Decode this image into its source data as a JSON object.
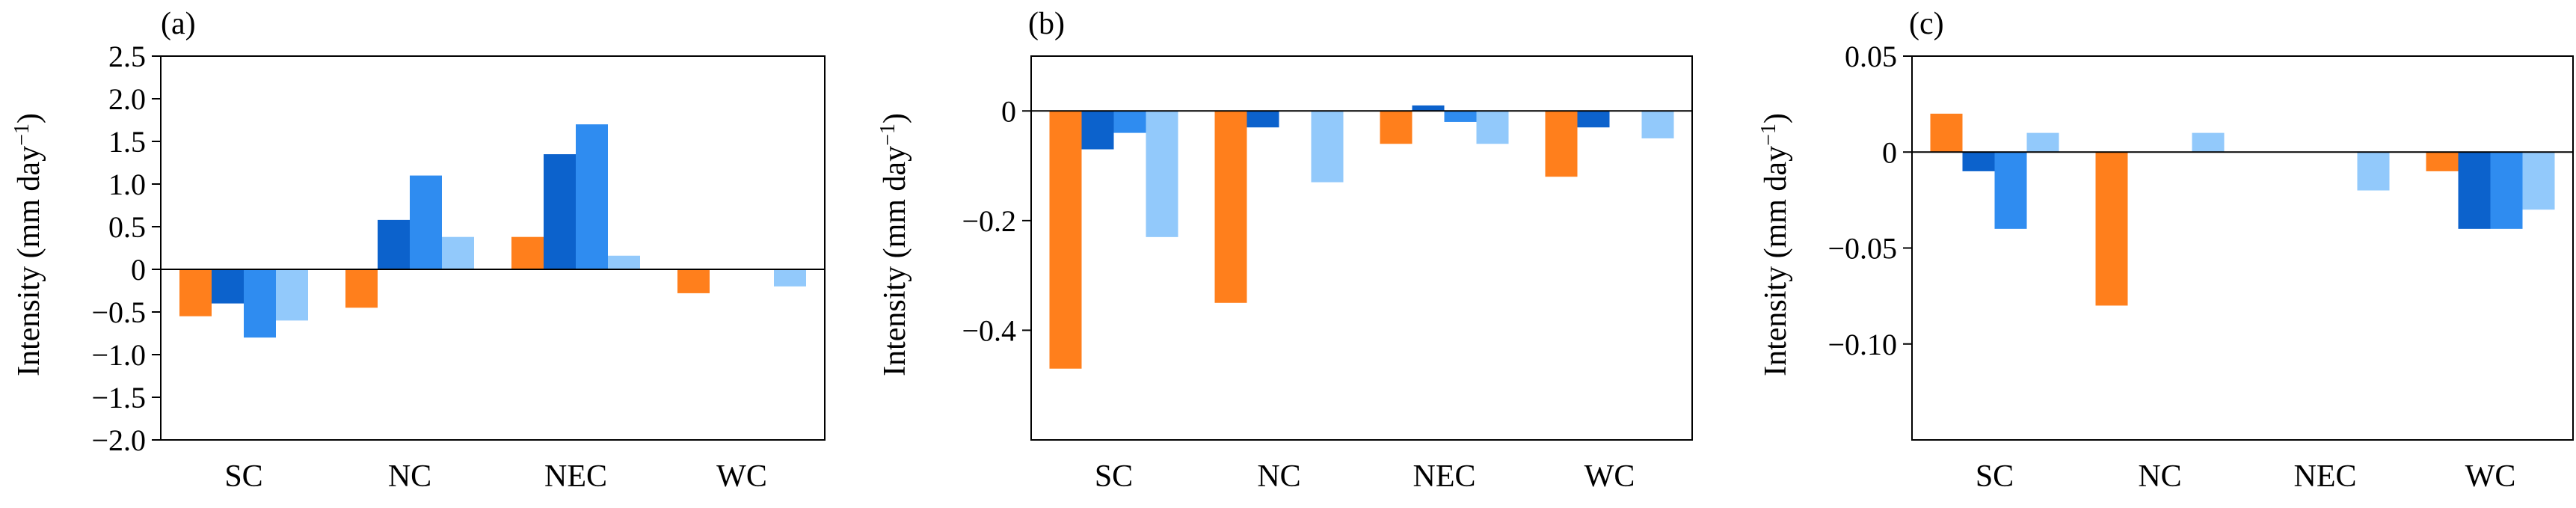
{
  "figure": {
    "colors": {
      "series1": "#ff7f1c",
      "series2": "#0c62cc",
      "series3": "#2f8cf0",
      "series4": "#92c9fb"
    }
  },
  "chart_data": [
    {
      "type": "bar",
      "panel": "(a)",
      "ylabel": "Intensity (mm day",
      "ylabel_sup": "−1",
      "ylabel_close": ")",
      "categories": [
        "SC",
        "NC",
        "NEC",
        "WC"
      ],
      "ylim": [
        -2.0,
        2.5
      ],
      "yticks": [
        -2.0,
        -1.5,
        -1.0,
        -0.5,
        0,
        0.5,
        1.0,
        1.5,
        2.0,
        2.5
      ],
      "ytick_labels": [
        "−2.0",
        "−1.5",
        "−1.0",
        "−0.5",
        "0",
        "0.5",
        "1.0",
        "1.5",
        "2.0",
        "2.5"
      ],
      "grid": false,
      "zero_line": true,
      "series": [
        {
          "values": [
            -0.55,
            -0.45,
            0.38,
            -0.28
          ]
        },
        {
          "values": [
            -0.4,
            0.58,
            1.35,
            0
          ]
        },
        {
          "values": [
            -0.8,
            1.1,
            1.7,
            0
          ]
        },
        {
          "values": [
            -0.6,
            0.38,
            0.16,
            -0.2
          ]
        }
      ]
    },
    {
      "type": "bar",
      "panel": "(b)",
      "ylabel": "Intensity (mm day",
      "ylabel_sup": "−1",
      "ylabel_close": ")",
      "categories": [
        "SC",
        "NC",
        "NEC",
        "WC"
      ],
      "ylim": [
        -0.6,
        0.1
      ],
      "yticks": [
        -0.4,
        -0.2,
        0
      ],
      "ytick_labels": [
        "−0.4",
        "−0.2",
        "0"
      ],
      "grid": false,
      "zero_line": true,
      "series": [
        {
          "values": [
            -0.47,
            -0.35,
            -0.06,
            -0.12
          ]
        },
        {
          "values": [
            -0.07,
            -0.03,
            0.01,
            -0.03
          ]
        },
        {
          "values": [
            -0.04,
            0,
            -0.02,
            0
          ]
        },
        {
          "values": [
            -0.23,
            -0.13,
            -0.06,
            -0.05
          ]
        }
      ]
    },
    {
      "type": "bar",
      "panel": "(c)",
      "ylabel": "Intensity (mm day",
      "ylabel_sup": "−1",
      "ylabel_close": ")",
      "categories": [
        "SC",
        "NC",
        "NEC",
        "WC"
      ],
      "ylim": [
        -0.15,
        0.05
      ],
      "yticks": [
        -0.1,
        -0.05,
        0,
        0.05
      ],
      "ytick_labels": [
        "−0.10",
        "−0.05",
        "0",
        "0.05"
      ],
      "grid": false,
      "zero_line": true,
      "series": [
        {
          "values": [
            0.02,
            -0.08,
            0,
            -0.01
          ]
        },
        {
          "values": [
            -0.01,
            0,
            0,
            -0.04
          ]
        },
        {
          "values": [
            -0.04,
            0,
            0,
            -0.04
          ]
        },
        {
          "values": [
            0.01,
            0.01,
            -0.02,
            -0.03
          ]
        }
      ]
    }
  ]
}
